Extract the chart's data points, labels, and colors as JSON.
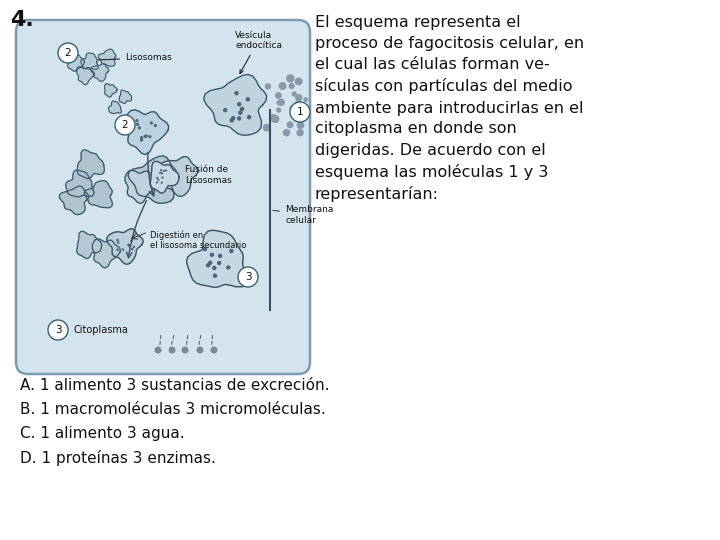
{
  "question_number": "4.",
  "question_number_fontsize": 16,
  "body_text": "El esquema representa el\nproceso de fagocitosis celular, en\nel cual las células forman ve-\nsículas con partículas del medio\nambiente para introducirlas en el\ncitoplasma en donde son\ndigeridas. De acuerdo con el\nesquema las moléculas 1 y 3\nrepresentarían:",
  "body_text_fontsize": 11.5,
  "answers": [
    "A. 1 alimento 3 sustancias de excreción.",
    "B. 1 macromoléculas 3 micromoléculas.",
    "C. 1 alimento 3 agua.",
    "D. 1 proteínas 3 enzimas."
  ],
  "answers_fontsize": 11,
  "background_color": "#ffffff",
  "text_color": "#111111",
  "diagram_bg": "#d4e4ef",
  "diagram_border": "#7a9ab0",
  "cell_color": "#b8ccd8",
  "label_fontsize": 6.5,
  "number_fontsize": 7.5
}
